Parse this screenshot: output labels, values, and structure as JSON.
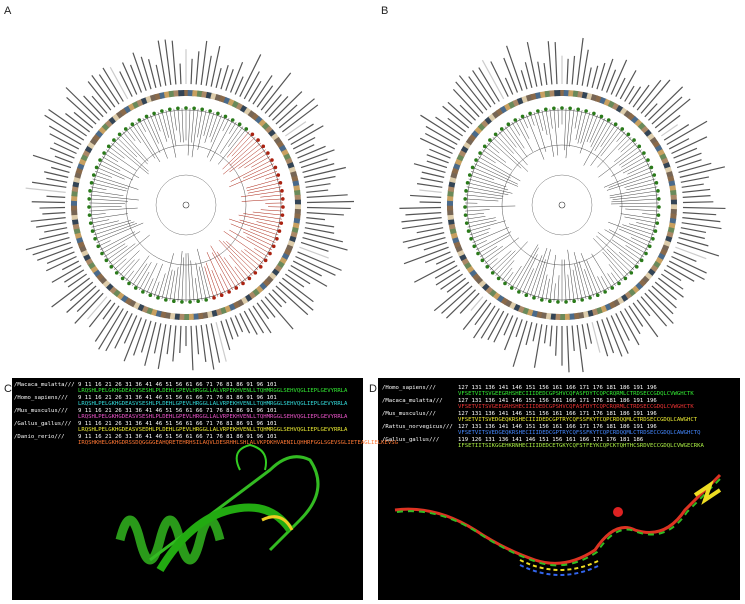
{
  "panels": [
    {
      "label": "A"
    },
    {
      "label": "B"
    },
    {
      "label": "C",
      "rows": [
        {
          "name": "/Macaca_mulatta///",
          "ruler": "9 11  16   21   26   31   36   41   46   51   56   61   66   71   76   81   86   91   96  101",
          "seq": "LRQSHLPELGKHGDEASVSESHLPLDEHLGPEVLHRGGLLALVRPEKHVENLLTQHMRGGLSEHVQGLIEPLGEVYRRLA",
          "color": "#33ee33"
        },
        {
          "name": "/Homo_sapiens///",
          "ruler": "9 11  16   21   26   31   36   41   46   51   56   61   66   71   76   81   86   91   96  101",
          "seq": "LRQSHLPELGKHGDEASVSESHLPLDEHLGPEVLHRGGLLALVRPEKHVENLLTQHMRGGLSEHVQGLIEPLGEVYRRLA",
          "color": "#33dddd"
        },
        {
          "name": "/Mus_musculus///",
          "ruler": "9 11  16   21   26   31   36   41   46   51   56   61   66   71   76   81   86   91   96  101",
          "seq": "LRQSHLPELGKHGDEASVSESHLPLDEHLGPEVLHRGGLLALVRPEKHVENLLTQHMRGGLSEHVQGLIEPLGEVYRRLA",
          "color": "#ee55cc"
        },
        {
          "name": "/Gallus_gallus///",
          "ruler": "9 11  16   21   26   31   36   41   46   51   56   61   66   71   76   81   86   91   96  101",
          "seq": "LRQSHLPELGKHGDEASVSEDHLPLDEHLGPEVLHRGGLLALVRPEKHVENLLTQHMRGGLSEHVQGLIEPLGEVYRRLA",
          "color": "#eeee33"
        },
        {
          "name": "/Danio_rerio///",
          "ruler": "9 11  16   21   26   31   36   41   46   51   56   61   66   71   76   81   86   91   96  101",
          "seq": "IRQSHKHELGKHGDRSSDQGGGGEAHQRETEHRHSILAQVLDESRHHLSHLALVKPDKHVAENILQHHRFGGLSGEVSGLIETEAGLIELKEVSG",
          "color": "#ff7733"
        }
      ]
    },
    {
      "label": "D",
      "rows": [
        {
          "name": "/Homo_sapiens///",
          "ruler": "127 131  136  141  146  151  156  161  166  171  176  181  186  191  196",
          "seq": "VFSETVITSVGEEGRHSHECIIIDEDCGPSHVCQFASFDYTCQPCRQRMLCTRDSECCGDQLCVWGHCTK",
          "color": "#33ee33"
        },
        {
          "name": "/Macaca_mulatta///",
          "ruler": "127 131  136  141  146  151  156  161  166  171  176  181  186  191  196",
          "seq": "VFSETVITSVGEEGRHSHECIIIDEDCGPSHVCQFASFDYTCQPCRQRMLCTRDSECCGDQLCVWGHCTK",
          "color": "#ee3333"
        },
        {
          "name": "/Mus_musculus///",
          "ruler": "127 131  136  141  146  151  156  161  166  171  176  181  186  191  196",
          "seq": "VFSETVITSVEDGEQKRSHECIIIDEDCGPTRYCQFSSFKYTCQPCRDQQMLCTRDSECCGDQLCAWGHCT",
          "color": "#eeee33"
        },
        {
          "name": "/Rattus_norvegicus///",
          "ruler": "127 131  136  141  146  151  156  161  166  171  176  181  186  191  196",
          "seq": "VFSETVITSVEDGEQKRSHECIIIDEDCGPTRYCQFSSFKYTCQPCRDQQMLCTRDSECCGDQLCAWGHCTQ",
          "color": "#4488ff"
        },
        {
          "name": "/Gallus_gallus///",
          "ruler": "119  126  131  136  141  146  151  156  161  166  171  176  181  186",
          "seq": "IFSETIITSIKGGEHKRNHECIIIDEDCETGKYCQFSTFEYKCQPCKTQHTHCSRDVECCGDQLCVWGECRKA",
          "color": "#aaee44"
        }
      ]
    }
  ]
}
